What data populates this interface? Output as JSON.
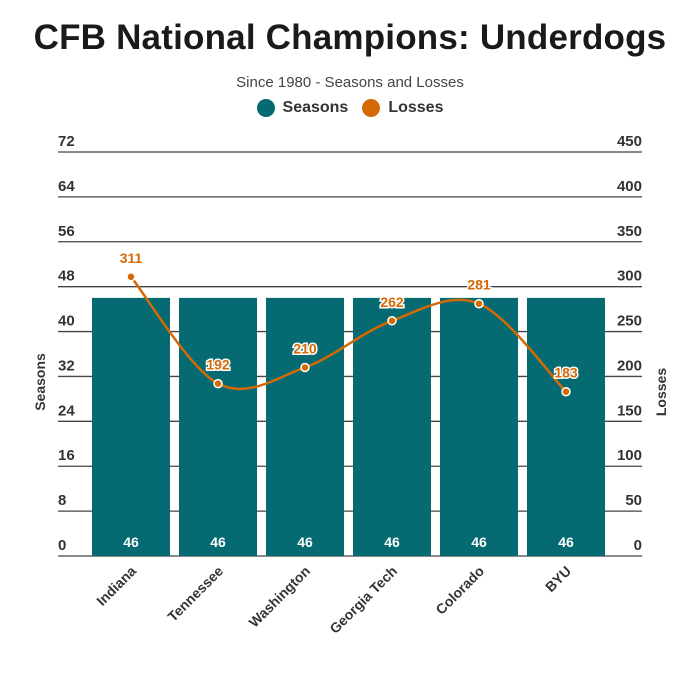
{
  "chart_data": {
    "type": "bar",
    "title": "CFB National Champions: Underdogs",
    "subtitle": "Since 1980 - Seasons and Losses",
    "categories": [
      "Indiana",
      "Tennessee",
      "Washington",
      "Georgia Tech",
      "Colorado",
      "BYU"
    ],
    "series": [
      {
        "name": "Seasons",
        "type": "bar",
        "axis": "left",
        "color": "#056a71",
        "values": [
          46,
          46,
          46,
          46,
          46,
          46
        ]
      },
      {
        "name": "Losses",
        "type": "line",
        "axis": "right",
        "color": "#d46a05",
        "values": [
          311,
          192,
          210,
          262,
          281,
          183
        ]
      }
    ],
    "ylabel": "Seasons",
    "y2label": "Losses",
    "ylim": [
      0,
      72
    ],
    "y2lim": [
      0,
      450
    ],
    "yticks": [
      0,
      8,
      16,
      24,
      32,
      40,
      48,
      56,
      64,
      72
    ],
    "y2ticks": [
      0,
      50,
      100,
      150,
      200,
      250,
      300,
      350,
      400,
      450
    ],
    "grid": true,
    "legend_position": "top-center"
  }
}
